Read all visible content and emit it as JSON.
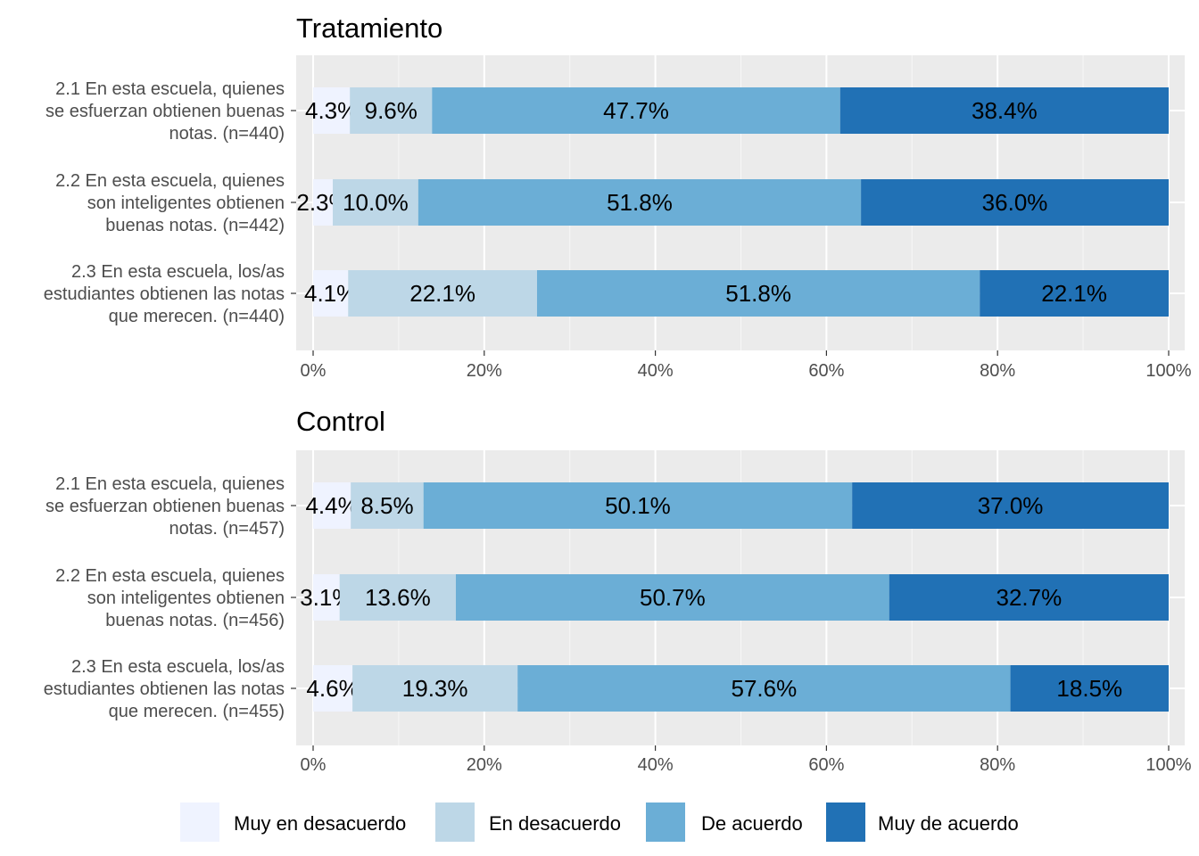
{
  "chart_data": {
    "type": "bar",
    "orientation": "horizontal",
    "stacked": true,
    "x_ticks": [
      "0%",
      "20%",
      "40%",
      "60%",
      "80%",
      "100%"
    ],
    "xlim": [
      0,
      100
    ],
    "grid": true,
    "legend_position": "bottom",
    "legend": [
      {
        "name": "Muy en desacuerdo",
        "color": "#eff3ff"
      },
      {
        "name": "En desacuerdo",
        "color": "#bdd7e7"
      },
      {
        "name": "De acuerdo",
        "color": "#6baed6"
      },
      {
        "name": "Muy de acuerdo",
        "color": "#2171b5"
      }
    ],
    "panels": [
      {
        "title": "Tratamiento",
        "rows": [
          {
            "label": [
              "2.1 En esta escuela, quienes",
              "se esfuerzan obtienen buenas",
              "notas. (n=440)"
            ],
            "values": [
              4.3,
              9.6,
              47.7,
              38.4
            ],
            "labels": [
              "4.3%",
              "9.6%",
              "47.7%",
              "38.4%"
            ]
          },
          {
            "label": [
              "2.2 En esta escuela, quienes",
              "son inteligentes obtienen",
              "buenas notas. (n=442)"
            ],
            "values": [
              2.3,
              10.0,
              51.8,
              36.0
            ],
            "labels": [
              "2.3%",
              "10.0%",
              "51.8%",
              "36.0%"
            ]
          },
          {
            "label": [
              "2.3 En esta escuela, los/as",
              "estudiantes obtienen las notas",
              "que merecen. (n=440)"
            ],
            "values": [
              4.1,
              22.1,
              51.8,
              22.1
            ],
            "labels": [
              "4.1%",
              "22.1%",
              "51.8%",
              "22.1%"
            ]
          }
        ]
      },
      {
        "title": "Control",
        "rows": [
          {
            "label": [
              "2.1 En esta escuela, quienes",
              "se esfuerzan obtienen buenas",
              "notas. (n=457)"
            ],
            "values": [
              4.4,
              8.5,
              50.1,
              37.0
            ],
            "labels": [
              "4.4%",
              "8.5%",
              "50.1%",
              "37.0%"
            ]
          },
          {
            "label": [
              "2.2 En esta escuela, quienes",
              "son inteligentes obtienen",
              "buenas notas. (n=456)"
            ],
            "values": [
              3.1,
              13.6,
              50.7,
              32.7
            ],
            "labels": [
              "3.1%",
              "13.6%",
              "50.7%",
              "32.7%"
            ]
          },
          {
            "label": [
              "2.3 En esta escuela, los/as",
              "estudiantes obtienen las notas",
              "que merecen. (n=455)"
            ],
            "values": [
              4.6,
              19.3,
              57.6,
              18.5
            ],
            "labels": [
              "4.6%",
              "19.3%",
              "57.6%",
              "18.5%"
            ]
          }
        ]
      }
    ]
  }
}
